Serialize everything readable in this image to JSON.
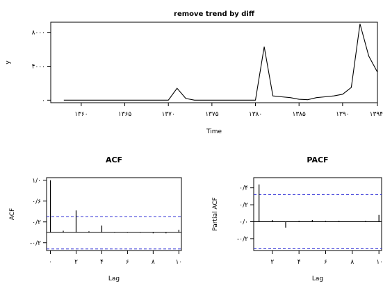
{
  "colors": {
    "line": "#000000",
    "ci": "#2b2bd6",
    "background": "#ffffff"
  },
  "chart_data": [
    {
      "type": "line",
      "title": "remove trend by diff",
      "xlabel": "Time",
      "ylabel": "y",
      "xlim": [
        1356.5,
        1394
      ],
      "ylim": [
        -300,
        9200
      ],
      "xtick_values": [
        1360,
        1365,
        1370,
        1375,
        1380,
        1385,
        1390,
        1394
      ],
      "xtick_labels": [
        "۱۳۶۰",
        "۱۳۶۵",
        "۱۳۷۰",
        "۱۳۷۵",
        "۱۳۸۰",
        "۱۳۸۵",
        "۱۳۹۰",
        "۱۳۹۴"
      ],
      "ytick_values": [
        0,
        4000,
        8000
      ],
      "ytick_labels": [
        "۰",
        "۴۰۰۰",
        "۸۰۰۰"
      ],
      "x": [
        1358,
        1359,
        1360,
        1361,
        1362,
        1363,
        1364,
        1365,
        1366,
        1367,
        1368,
        1369,
        1370,
        1371,
        1372,
        1373,
        1374,
        1375,
        1376,
        1377,
        1378,
        1379,
        1380,
        1381,
        1382,
        1383,
        1384,
        1385,
        1386,
        1387,
        1388,
        1389,
        1390,
        1391,
        1392,
        1393,
        1394
      ],
      "y": [
        0,
        0,
        0,
        0,
        0,
        0,
        0,
        0,
        0,
        0,
        0,
        0,
        0,
        1400,
        200,
        0,
        0,
        0,
        0,
        0,
        0,
        0,
        0,
        6300,
        500,
        400,
        300,
        100,
        50,
        300,
        400,
        500,
        700,
        1500,
        9000,
        5200,
        3300
      ]
    },
    {
      "type": "bar",
      "title": "ACF",
      "xlabel": "Lag",
      "ylabel": "ACF",
      "xlim": [
        -0.3,
        10.2
      ],
      "ylim": [
        -0.35,
        1.05
      ],
      "xtick_values": [
        0,
        2,
        4,
        6,
        8,
        10
      ],
      "xtick_labels": [
        "۰",
        "۲",
        "۴",
        "۶",
        "۸",
        "۱۰"
      ],
      "ytick_values": [
        -0.2,
        0.2,
        0.6,
        1.0
      ],
      "ytick_labels": [
        "-۰/۲",
        "۰/۲",
        "۰/۶",
        "۱/۰"
      ],
      "lags": [
        0,
        1,
        2,
        3,
        4,
        5,
        6,
        7,
        8,
        9,
        10
      ],
      "values": [
        1.0,
        0.03,
        0.42,
        0.02,
        0.13,
        -0.01,
        -0.01,
        -0.01,
        -0.02,
        -0.02,
        0.05
      ],
      "confidence_limits": [
        0.3,
        -0.32
      ]
    },
    {
      "type": "bar",
      "title": "PACF",
      "xlabel": "Lag",
      "ylabel": "Partial ACF",
      "xlim": [
        0.6,
        10.2
      ],
      "ylim": [
        -0.34,
        0.52
      ],
      "xtick_values": [
        2,
        4,
        6,
        8,
        10
      ],
      "xtick_labels": [
        "۲",
        "۴",
        "۶",
        "۸",
        "۱۰"
      ],
      "ytick_values": [
        -0.2,
        0.0,
        0.2,
        0.4
      ],
      "ytick_labels": [
        "-۰/۲",
        "۰/۰",
        "۰/۲",
        "۰/۴"
      ],
      "lags": [
        1,
        2,
        3,
        4,
        5,
        6,
        7,
        8,
        9,
        10
      ],
      "values": [
        0.44,
        0.02,
        -0.07,
        0.01,
        0.02,
        0.01,
        0.01,
        0.0,
        0.01,
        0.08
      ],
      "confidence_limits": [
        0.32,
        -0.32
      ]
    }
  ]
}
